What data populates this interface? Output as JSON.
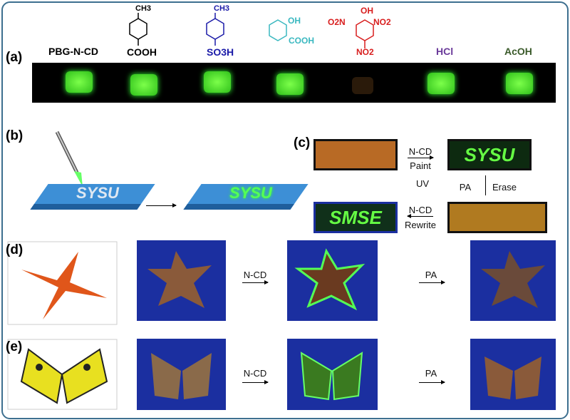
{
  "panels": {
    "a": "(a)",
    "b": "(b)",
    "c": "(c)",
    "d": "(d)",
    "e": "(e)"
  },
  "panel_a": {
    "samples": [
      {
        "label": "PBG-N-CD",
        "color": "#000000",
        "fluorescent": true
      },
      {
        "label": "COOH",
        "top": "CH3",
        "color": "#000000",
        "fluorescent": true
      },
      {
        "label": "SO3H",
        "top": "CH3",
        "color": "#1a1aa8",
        "fluorescent": true
      },
      {
        "label": "COOH",
        "top": "OH",
        "color": "#3ab8c0",
        "fluorescent": true
      },
      {
        "label": "NO2",
        "top": "OH",
        "left": "O2N",
        "right": "NO2",
        "color": "#d81e1e",
        "fluorescent": false
      },
      {
        "label": "HCl",
        "color": "#6a3a9a",
        "fluorescent": true
      },
      {
        "label": "AcOH",
        "color": "#3a5a2a",
        "fluorescent": true
      }
    ]
  },
  "panel_b": {
    "text_before": "SYSU",
    "text_after": "SYSU"
  },
  "panel_c": {
    "paint_reagent": "N-CD",
    "paint_label": "Paint",
    "uv": "UV",
    "erase_reagent": "PA",
    "erase_label": "Erase",
    "rewrite_reagent": "N-CD",
    "rewrite_label": "Rewrite",
    "written_1": "SYSU",
    "written_2": "SMSE"
  },
  "panel_d": {
    "step1": "N-CD",
    "step2": "PA"
  },
  "panel_e": {
    "step1": "N-CD",
    "step2": "PA"
  }
}
